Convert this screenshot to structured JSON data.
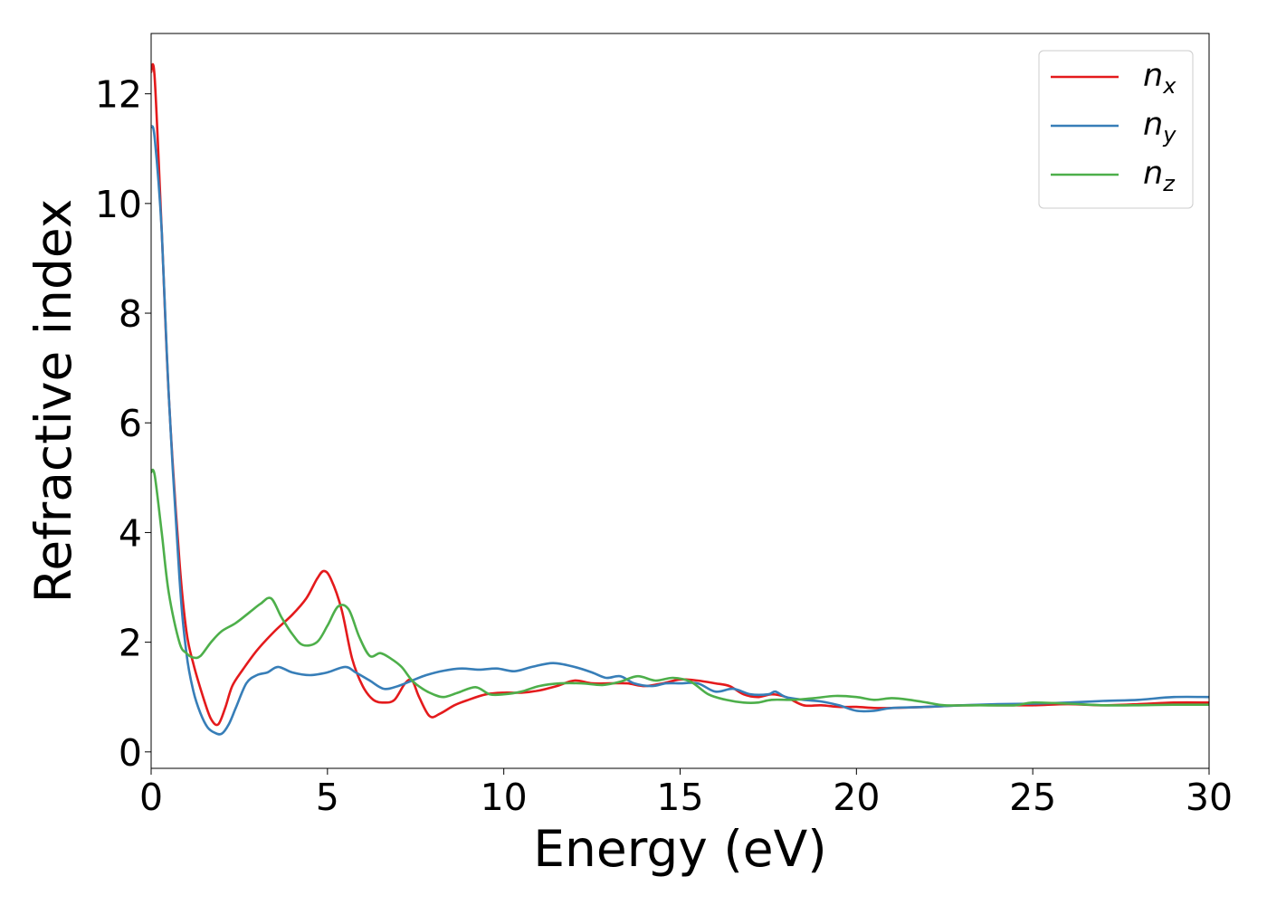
{
  "chart_data": {
    "type": "line",
    "title": "",
    "xlabel": "Energy (eV)",
    "ylabel": "Refractive index",
    "xlim": [
      0,
      30
    ],
    "ylim": [
      -0.3,
      13.1
    ],
    "xticks": [
      0,
      5,
      10,
      15,
      20,
      25,
      30
    ],
    "yticks": [
      0,
      2,
      4,
      6,
      8,
      10,
      12
    ],
    "grid": false,
    "legend_position": "top-right",
    "series": [
      {
        "name": "n",
        "subscript": "x",
        "color": "#e41a1c",
        "points": [
          [
            0,
            12.4
          ],
          [
            0.1,
            12.3
          ],
          [
            0.3,
            9.5
          ],
          [
            0.5,
            6.5
          ],
          [
            0.8,
            3.5
          ],
          [
            1.0,
            2.2
          ],
          [
            1.2,
            1.6
          ],
          [
            1.5,
            0.95
          ],
          [
            1.7,
            0.6
          ],
          [
            1.9,
            0.5
          ],
          [
            2.1,
            0.8
          ],
          [
            2.3,
            1.2
          ],
          [
            2.6,
            1.5
          ],
          [
            3.0,
            1.85
          ],
          [
            3.5,
            2.2
          ],
          [
            4.0,
            2.5
          ],
          [
            4.4,
            2.8
          ],
          [
            4.7,
            3.15
          ],
          [
            4.9,
            3.3
          ],
          [
            5.1,
            3.15
          ],
          [
            5.4,
            2.6
          ],
          [
            5.7,
            1.7
          ],
          [
            6.0,
            1.2
          ],
          [
            6.3,
            0.95
          ],
          [
            6.6,
            0.9
          ],
          [
            6.9,
            0.95
          ],
          [
            7.2,
            1.25
          ],
          [
            7.4,
            1.3
          ],
          [
            7.6,
            1.0
          ],
          [
            7.9,
            0.65
          ],
          [
            8.2,
            0.7
          ],
          [
            8.6,
            0.85
          ],
          [
            9.0,
            0.95
          ],
          [
            9.5,
            1.05
          ],
          [
            10.0,
            1.08
          ],
          [
            10.5,
            1.08
          ],
          [
            11.0,
            1.12
          ],
          [
            11.5,
            1.2
          ],
          [
            12.0,
            1.3
          ],
          [
            12.5,
            1.25
          ],
          [
            13.0,
            1.25
          ],
          [
            13.5,
            1.25
          ],
          [
            14.0,
            1.2
          ],
          [
            14.5,
            1.25
          ],
          [
            15.0,
            1.32
          ],
          [
            15.5,
            1.3
          ],
          [
            16.0,
            1.25
          ],
          [
            16.4,
            1.2
          ],
          [
            16.8,
            1.05
          ],
          [
            17.2,
            1.0
          ],
          [
            17.6,
            1.05
          ],
          [
            18.0,
            1.0
          ],
          [
            18.5,
            0.85
          ],
          [
            19.0,
            0.85
          ],
          [
            19.5,
            0.82
          ],
          [
            20.0,
            0.82
          ],
          [
            20.5,
            0.8
          ],
          [
            21.0,
            0.8
          ],
          [
            22.0,
            0.82
          ],
          [
            23.0,
            0.85
          ],
          [
            24.0,
            0.85
          ],
          [
            25.0,
            0.85
          ],
          [
            26.0,
            0.87
          ],
          [
            27.0,
            0.85
          ],
          [
            28.0,
            0.87
          ],
          [
            29.0,
            0.9
          ],
          [
            30.0,
            0.9
          ]
        ]
      },
      {
        "name": "n",
        "subscript": "y",
        "color": "#377eb8",
        "points": [
          [
            0,
            11.4
          ],
          [
            0.1,
            11.2
          ],
          [
            0.3,
            9.5
          ],
          [
            0.5,
            6.5
          ],
          [
            0.8,
            3.2
          ],
          [
            1.0,
            1.8
          ],
          [
            1.2,
            1.1
          ],
          [
            1.4,
            0.7
          ],
          [
            1.6,
            0.45
          ],
          [
            1.8,
            0.35
          ],
          [
            2.0,
            0.33
          ],
          [
            2.2,
            0.5
          ],
          [
            2.4,
            0.8
          ],
          [
            2.7,
            1.25
          ],
          [
            3.0,
            1.4
          ],
          [
            3.3,
            1.45
          ],
          [
            3.6,
            1.55
          ],
          [
            4.0,
            1.45
          ],
          [
            4.5,
            1.4
          ],
          [
            5.0,
            1.45
          ],
          [
            5.5,
            1.55
          ],
          [
            5.8,
            1.45
          ],
          [
            6.2,
            1.3
          ],
          [
            6.6,
            1.15
          ],
          [
            7.0,
            1.2
          ],
          [
            7.4,
            1.3
          ],
          [
            7.8,
            1.4
          ],
          [
            8.3,
            1.48
          ],
          [
            8.8,
            1.52
          ],
          [
            9.3,
            1.5
          ],
          [
            9.8,
            1.52
          ],
          [
            10.3,
            1.47
          ],
          [
            10.8,
            1.55
          ],
          [
            11.4,
            1.62
          ],
          [
            12.0,
            1.55
          ],
          [
            12.5,
            1.45
          ],
          [
            12.9,
            1.35
          ],
          [
            13.3,
            1.38
          ],
          [
            13.7,
            1.25
          ],
          [
            14.2,
            1.2
          ],
          [
            14.6,
            1.25
          ],
          [
            15.0,
            1.25
          ],
          [
            15.5,
            1.25
          ],
          [
            16.0,
            1.1
          ],
          [
            16.5,
            1.15
          ],
          [
            17.0,
            1.05
          ],
          [
            17.5,
            1.05
          ],
          [
            17.7,
            1.1
          ],
          [
            18.0,
            1.0
          ],
          [
            18.5,
            0.95
          ],
          [
            19.0,
            0.92
          ],
          [
            19.5,
            0.85
          ],
          [
            20.0,
            0.75
          ],
          [
            20.5,
            0.75
          ],
          [
            21.0,
            0.8
          ],
          [
            22.0,
            0.82
          ],
          [
            23.0,
            0.85
          ],
          [
            24.0,
            0.87
          ],
          [
            25.0,
            0.88
          ],
          [
            26.0,
            0.9
          ],
          [
            27.0,
            0.93
          ],
          [
            28.0,
            0.95
          ],
          [
            29.0,
            1.0
          ],
          [
            30.0,
            1.0
          ]
        ]
      },
      {
        "name": "n",
        "subscript": "z",
        "color": "#4daf4a",
        "points": [
          [
            0,
            5.1
          ],
          [
            0.1,
            5.05
          ],
          [
            0.3,
            4.0
          ],
          [
            0.5,
            2.9
          ],
          [
            0.8,
            2.0
          ],
          [
            1.0,
            1.8
          ],
          [
            1.2,
            1.72
          ],
          [
            1.4,
            1.75
          ],
          [
            1.7,
            2.0
          ],
          [
            2.0,
            2.2
          ],
          [
            2.4,
            2.35
          ],
          [
            2.8,
            2.55
          ],
          [
            3.1,
            2.7
          ],
          [
            3.4,
            2.8
          ],
          [
            3.7,
            2.45
          ],
          [
            4.0,
            2.15
          ],
          [
            4.3,
            1.95
          ],
          [
            4.7,
            2.0
          ],
          [
            5.0,
            2.3
          ],
          [
            5.3,
            2.65
          ],
          [
            5.6,
            2.6
          ],
          [
            5.9,
            2.1
          ],
          [
            6.2,
            1.75
          ],
          [
            6.5,
            1.8
          ],
          [
            6.8,
            1.7
          ],
          [
            7.1,
            1.55
          ],
          [
            7.4,
            1.3
          ],
          [
            7.7,
            1.15
          ],
          [
            8.0,
            1.05
          ],
          [
            8.3,
            1.0
          ],
          [
            8.7,
            1.08
          ],
          [
            9.2,
            1.18
          ],
          [
            9.6,
            1.05
          ],
          [
            10.0,
            1.05
          ],
          [
            10.5,
            1.1
          ],
          [
            11.0,
            1.2
          ],
          [
            11.6,
            1.25
          ],
          [
            12.2,
            1.25
          ],
          [
            12.8,
            1.22
          ],
          [
            13.3,
            1.28
          ],
          [
            13.8,
            1.38
          ],
          [
            14.3,
            1.3
          ],
          [
            14.8,
            1.35
          ],
          [
            15.3,
            1.28
          ],
          [
            15.8,
            1.05
          ],
          [
            16.3,
            0.95
          ],
          [
            16.8,
            0.9
          ],
          [
            17.2,
            0.9
          ],
          [
            17.6,
            0.95
          ],
          [
            18.2,
            0.95
          ],
          [
            18.8,
            0.98
          ],
          [
            19.4,
            1.02
          ],
          [
            20.0,
            1.0
          ],
          [
            20.5,
            0.95
          ],
          [
            21.0,
            0.98
          ],
          [
            21.5,
            0.95
          ],
          [
            22.0,
            0.9
          ],
          [
            22.5,
            0.85
          ],
          [
            23.5,
            0.85
          ],
          [
            24.5,
            0.85
          ],
          [
            25.0,
            0.9
          ],
          [
            26.0,
            0.88
          ],
          [
            27.0,
            0.85
          ],
          [
            28.0,
            0.85
          ],
          [
            29.0,
            0.86
          ],
          [
            30.0,
            0.86
          ]
        ]
      }
    ]
  }
}
